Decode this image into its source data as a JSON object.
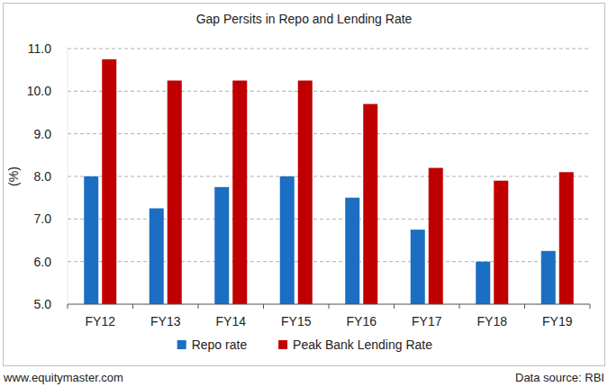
{
  "chart_data": {
    "type": "bar",
    "title": "Gap Persits in Repo and Lending Rate",
    "y_label": "(%)",
    "categories": [
      "FY12",
      "FY13",
      "FY14",
      "FY15",
      "FY16",
      "FY17",
      "FY18",
      "FY19"
    ],
    "series": [
      {
        "name": "Repo rate",
        "color": "#1b6ec2",
        "values": [
          8.0,
          7.25,
          7.75,
          8.0,
          7.5,
          6.75,
          6.0,
          6.25
        ]
      },
      {
        "name": "Peak Bank Lending Rate",
        "color": "#c00000",
        "values": [
          10.75,
          10.25,
          10.25,
          10.25,
          9.7,
          8.2,
          7.9,
          8.1
        ]
      }
    ],
    "ylim": [
      5,
      11
    ],
    "yticks": [
      {
        "value": 5,
        "label": "5.0"
      },
      {
        "value": 6,
        "label": "6.0"
      },
      {
        "value": 7,
        "label": "7.0"
      },
      {
        "value": 8,
        "label": "8.0"
      },
      {
        "value": 9,
        "label": "9.0"
      },
      {
        "value": 10,
        "label": "10.0"
      },
      {
        "value": 11,
        "label": "11.0"
      }
    ],
    "grid": true,
    "legend": "bottom",
    "annotations": [
      "www.equitymaster.com",
      "Data source: RBI"
    ]
  }
}
